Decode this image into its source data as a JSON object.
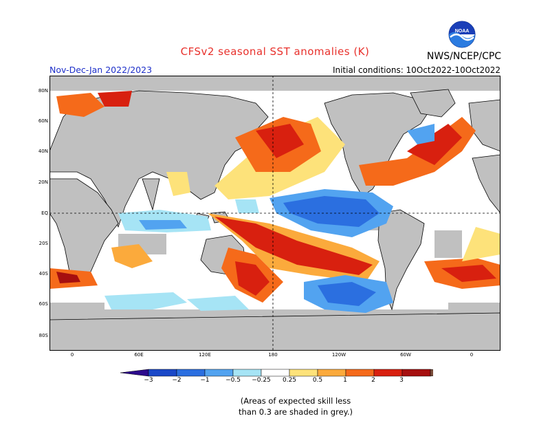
{
  "header": {
    "title": "CFSv2 seasonal SST anomalies (K)",
    "org": "NWS/NCEP/CPC",
    "logo_text": "NOAA",
    "season": "Nov-Dec-Jan 2022/2023",
    "initial_conditions": "Initial conditions: 10Oct2022-10Oct2022"
  },
  "map": {
    "lat_labels": [
      "80N",
      "60N",
      "40N",
      "20N",
      "EQ",
      "20S",
      "40S",
      "60S",
      "80S"
    ],
    "lon_labels": [
      "0",
      "60E",
      "120E",
      "180",
      "120W",
      "60W",
      "0"
    ],
    "land_color": "#c0c0c0",
    "colorbar": {
      "colors": [
        "#2c0a8c",
        "#1a48c8",
        "#2b6fe0",
        "#52a3f0",
        "#a6e4f5",
        "#ffffff",
        "#fde27a",
        "#fbaa3c",
        "#f56a1a",
        "#d8200f",
        "#a60f0f",
        "#7a4d3a"
      ],
      "ticks": [
        "−3",
        "−2",
        "−1",
        "−0.5",
        "−0.25",
        "0.25",
        "0.5",
        "1",
        "2",
        "3"
      ]
    }
  },
  "footnote": {
    "line1": "(Areas of expected skill less",
    "line2": "than 0.3 are shaded in grey.)"
  }
}
